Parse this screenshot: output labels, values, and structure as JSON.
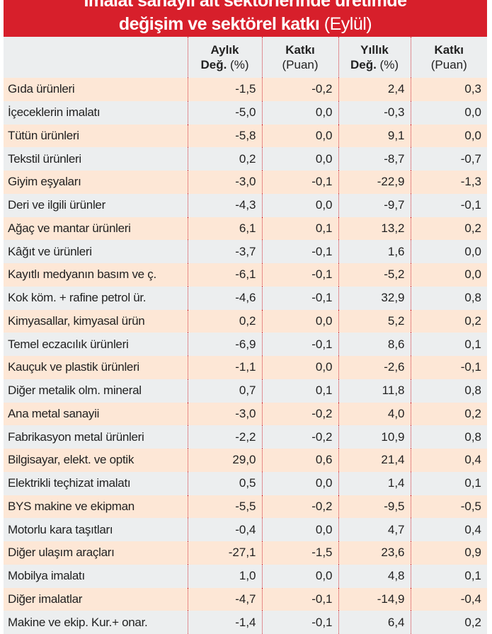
{
  "title": {
    "line1": "İmalat sanayii alt sektörlerinde üretimde",
    "line2": "değişim ve sektörel katkı",
    "period": "(Eylül)"
  },
  "colors": {
    "title_bg": "#d71f2b",
    "row_alt_1": "#fde7d6",
    "row_alt_2": "#eceeef"
  },
  "columns": [
    {
      "bold": "Aylık",
      "line2_bold": "Değ.",
      "line2": " (%)"
    },
    {
      "bold": "Katkı",
      "line2_bold": "",
      "line2": "(Puan)"
    },
    {
      "bold": "Yıllık",
      "line2_bold": "Değ.",
      "line2": " (%)"
    },
    {
      "bold": "Katkı",
      "line2_bold": "",
      "line2": "(Puan)"
    }
  ],
  "rows": [
    [
      "Gıda ürünleri",
      "-1,5",
      "-0,2",
      "2,4",
      "0,3"
    ],
    [
      "İçeceklerin imalatı",
      "-5,0",
      "0,0",
      "-0,3",
      "0,0"
    ],
    [
      "Tütün ürünleri",
      "-5,8",
      "0,0",
      "9,1",
      "0,0"
    ],
    [
      "Tekstil ürünleri",
      "0,2",
      "0,0",
      "-8,7",
      "-0,7"
    ],
    [
      "Giyim eşyaları",
      "-3,0",
      "-0,1",
      "-22,9",
      "-1,3"
    ],
    [
      "Deri ve ilgili ürünler",
      "-4,3",
      "0,0",
      "-9,7",
      "-0,1"
    ],
    [
      "Ağaç ve mantar ürünleri",
      "6,1",
      "0,1",
      "13,2",
      "0,2"
    ],
    [
      "Kâğıt ve ürünleri",
      "-3,7",
      "-0,1",
      "1,6",
      "0,0"
    ],
    [
      "Kayıtlı medyanın basım ve ç.",
      "-6,1",
      "-0,1",
      "-5,2",
      "0,0"
    ],
    [
      "Kok köm. + rafine petrol ür.",
      "-4,6",
      "-0,1",
      "32,9",
      "0,8"
    ],
    [
      "Kimyasallar, kimyasal ürün",
      "0,2",
      "0,0",
      "5,2",
      "0,2"
    ],
    [
      "Temel eczacılık ürünleri",
      "-6,9",
      "-0,1",
      "8,6",
      "0,1"
    ],
    [
      "Kauçuk ve plastik ürünleri",
      "-1,1",
      "0,0",
      "-2,6",
      "-0,1"
    ],
    [
      "Diğer metalik olm. mineral",
      "0,7",
      "0,1",
      "11,8",
      "0,8"
    ],
    [
      "Ana metal sanayii",
      "-3,0",
      "-0,2",
      "4,0",
      "0,2"
    ],
    [
      "Fabrikasyon metal ürünleri",
      "-2,2",
      "-0,2",
      "10,9",
      "0,8"
    ],
    [
      "Bilgisayar, elekt. ve optik",
      "29,0",
      "0,6",
      "21,4",
      "0,4"
    ],
    [
      "Elektrikli teçhizat imalatı",
      "0,5",
      "0,0",
      "1,4",
      "0,1"
    ],
    [
      "BYS makine ve ekipman",
      "-5,5",
      "-0,2",
      "-9,5",
      "-0,5"
    ],
    [
      "Motorlu kara taşıtları",
      "-0,4",
      "0,0",
      "4,7",
      "0,4"
    ],
    [
      "Diğer ulaşım araçları",
      "-27,1",
      "-1,5",
      "23,6",
      "0,9"
    ],
    [
      "Mobilya imalatı",
      "1,0",
      "0,0",
      "4,8",
      "0,1"
    ],
    [
      "Diğer imalatlar",
      "-4,7",
      "-0,1",
      "-14,9",
      "-0,4"
    ],
    [
      "Makine ve ekip. Kur.+ onar.",
      "-1,4",
      "-0,1",
      "6,4",
      "0,2"
    ]
  ]
}
